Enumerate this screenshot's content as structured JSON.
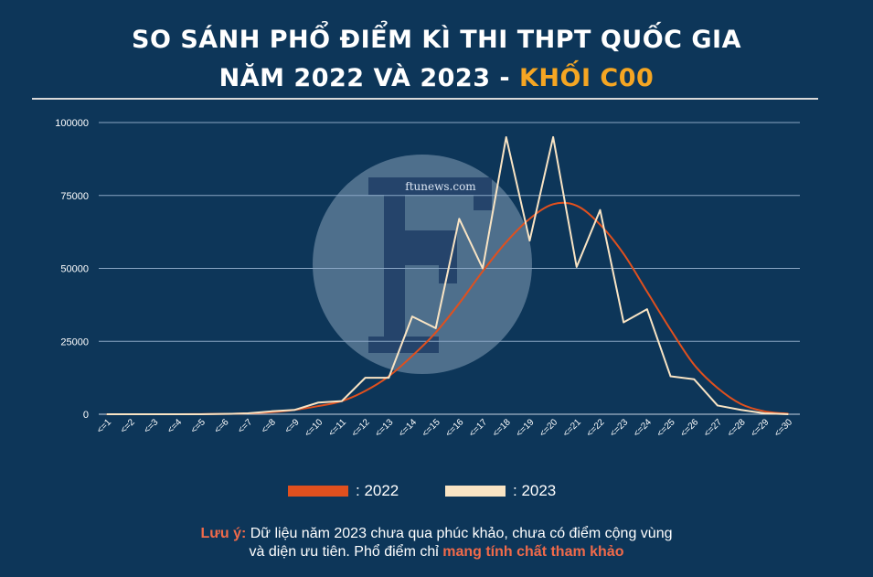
{
  "header": {
    "title_line1": "SO SÁNH PHỔ ĐIỂM KÌ THI THPT QUỐC GIA",
    "title_line2_prefix": "NĂM 2022 VÀ 2023 - ",
    "title_line2_accent": "KHỐI C00"
  },
  "watermark": {
    "text": "ftunews.com",
    "logo_letter": "F"
  },
  "legend": [
    {
      "label": ": 2022",
      "color": "#e0501e"
    },
    {
      "label": ": 2023",
      "color": "#f9e4c4"
    }
  ],
  "note": {
    "label": "Lưu ý:",
    "line1": " Dữ liệu năm 2023 chưa qua phúc khảo, chưa có điểm cộng vùng",
    "line2_prefix": "và diện ưu tiên. Phổ điểm chỉ ",
    "line2_highlight": "mang tính chất tham khảo"
  },
  "colors": {
    "background": "#0d3659",
    "accent": "#f5a623",
    "line_2022": "#e0501e",
    "line_2023": "#f9e4c4"
  },
  "chart_data": {
    "type": "line",
    "ylim": [
      0,
      100000
    ],
    "yticks": [
      0,
      25000,
      50000,
      75000,
      100000
    ],
    "ytick_labels": [
      "0",
      "25000",
      "50000",
      "75000",
      "100000"
    ],
    "categories": [
      "<=1",
      "<=2",
      "<=3",
      "<=4",
      "<=5",
      "<=6",
      "<=7",
      "<=8",
      "<=9",
      "<=10",
      "<=11",
      "<=12",
      "<=13",
      "<=14",
      "<=15",
      "<=16",
      "<=17",
      "<=18",
      "<=19",
      "<=20",
      "<=21",
      "<=22",
      "<=23",
      "<=24",
      "<=25",
      "<=26",
      "<=27",
      "<=28",
      "<=29",
      "<=30"
    ],
    "grid": true,
    "legend_position": "bottom",
    "series": [
      {
        "name": "2022",
        "values": [
          0,
          0,
          0,
          0,
          50,
          100,
          300,
          700,
          1500,
          2800,
          4500,
          8000,
          13000,
          20000,
          28000,
          38000,
          49000,
          59000,
          67000,
          72000,
          71500,
          65000,
          55000,
          42000,
          29000,
          17000,
          9000,
          3500,
          1000,
          200
        ]
      },
      {
        "name": "2023",
        "values": [
          0,
          0,
          0,
          0,
          0,
          100,
          300,
          1000,
          1500,
          4000,
          4500,
          12500,
          12500,
          33500,
          29500,
          67000,
          50000,
          95000,
          59500,
          95000,
          50500,
          70000,
          31500,
          36000,
          13000,
          12000,
          3000,
          1500,
          300,
          0
        ]
      }
    ]
  }
}
